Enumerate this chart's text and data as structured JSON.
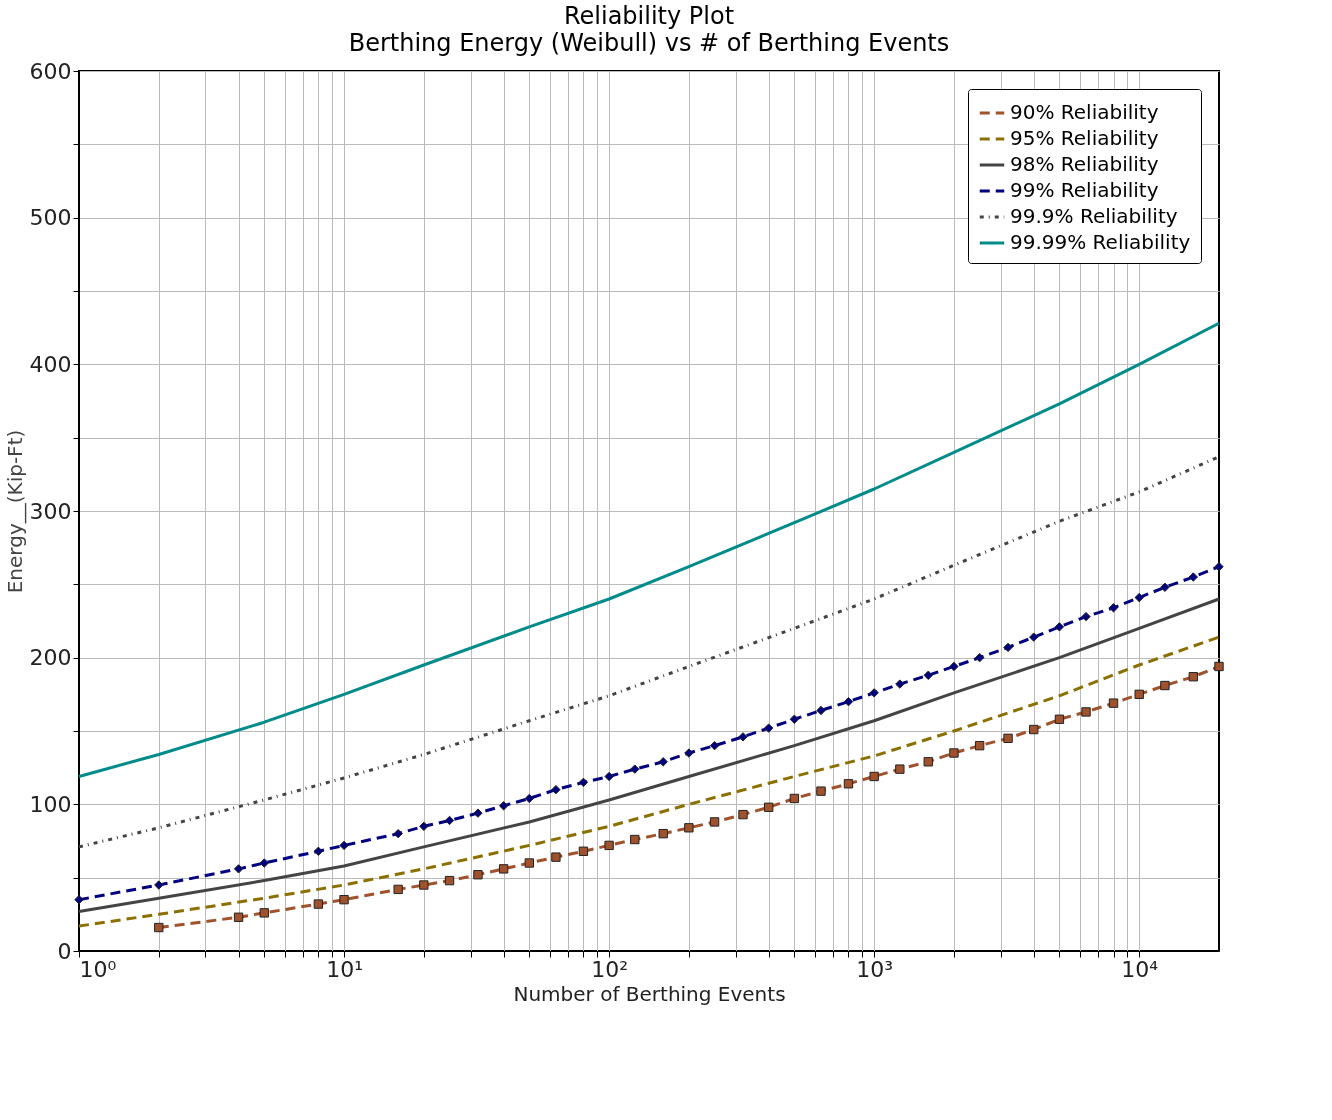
{
  "chart_data": {
    "type": "line",
    "title": "Reliability Plot",
    "subtitle": "Berthing Energy (Weibull) vs # of Berthing Events",
    "xlabel": "Number of Berthing Events",
    "ylabel": "Energy__(Kip-Ft)",
    "log": "x",
    "grid": true,
    "legend": "top right",
    "xlim": [
      1,
      20000
    ],
    "ylim": [
      0,
      600
    ],
    "xticks": [
      {
        "value": 1,
        "label": "10⁰"
      },
      {
        "value": 2,
        "label": null
      },
      {
        "value": 3,
        "label": null
      },
      {
        "value": 4,
        "label": null
      },
      {
        "value": 5,
        "label": null
      },
      {
        "value": 6,
        "label": null
      },
      {
        "value": 7,
        "label": null
      },
      {
        "value": 8,
        "label": null
      },
      {
        "value": 9,
        "label": null
      },
      {
        "value": 10,
        "label": "10¹"
      },
      {
        "value": 20,
        "label": null
      },
      {
        "value": 30,
        "label": null
      },
      {
        "value": 40,
        "label": null
      },
      {
        "value": 50,
        "label": null
      },
      {
        "value": 60,
        "label": null
      },
      {
        "value": 70,
        "label": null
      },
      {
        "value": 80,
        "label": null
      },
      {
        "value": 90,
        "label": null
      },
      {
        "value": 100,
        "label": "10²"
      },
      {
        "value": 200,
        "label": null
      },
      {
        "value": 300,
        "label": null
      },
      {
        "value": 400,
        "label": null
      },
      {
        "value": 500,
        "label": null
      },
      {
        "value": 600,
        "label": null
      },
      {
        "value": 700,
        "label": null
      },
      {
        "value": 800,
        "label": null
      },
      {
        "value": 900,
        "label": null
      },
      {
        "value": 1000,
        "label": "10³"
      },
      {
        "value": 2000,
        "label": null
      },
      {
        "value": 3000,
        "label": null
      },
      {
        "value": 4000,
        "label": null
      },
      {
        "value": 5000,
        "label": null
      },
      {
        "value": 6000,
        "label": null
      },
      {
        "value": 7000,
        "label": null
      },
      {
        "value": 8000,
        "label": null
      },
      {
        "value": 9000,
        "label": null
      },
      {
        "value": 10000,
        "label": "10⁴"
      }
    ],
    "yticks": [
      0,
      {
        "value": 50,
        "label": null
      },
      100,
      {
        "value": 150,
        "label": null
      },
      200,
      {
        "value": 250,
        "label": null
      },
      300,
      {
        "value": 350,
        "label": null
      },
      400,
      {
        "value": 450,
        "label": null
      },
      500,
      {
        "value": 550,
        "label": null
      },
      600
    ],
    "series": [
      {
        "name": "90% Reliability",
        "color": "#a0522d",
        "line_style": "dashed",
        "marker": "square",
        "x": [
          2,
          4,
          5,
          8,
          10,
          16,
          20,
          25,
          32,
          40,
          50,
          63,
          80,
          100,
          125,
          160,
          200,
          250,
          320,
          400,
          500,
          630,
          800,
          1000,
          1250,
          1600,
          2000,
          2500,
          3200,
          4000,
          5000,
          6300,
          8000,
          10000,
          12500,
          16000,
          20000
        ],
        "values": [
          16,
          23,
          26,
          32,
          35,
          42,
          45,
          48,
          52,
          56,
          60,
          64,
          68,
          72,
          76,
          80,
          84,
          88,
          93,
          98,
          104,
          109,
          114,
          119,
          124,
          129,
          135,
          140,
          145,
          151,
          158,
          163,
          169,
          175,
          181,
          187,
          194
        ]
      },
      {
        "name": "95% Reliability",
        "color": "#8b7000",
        "line_style": "dashed",
        "marker": "none",
        "x": [
          1,
          2,
          5,
          10,
          20,
          50,
          100,
          200,
          500,
          1000,
          2000,
          5000,
          10000,
          20000
        ],
        "values": [
          17,
          25,
          36,
          45,
          56,
          72,
          85,
          100,
          119,
          133,
          150,
          174,
          195,
          214
        ]
      },
      {
        "name": "98% Reliability",
        "color": "#444444",
        "line_style": "solid",
        "marker": "none",
        "x": [
          1,
          2,
          5,
          10,
          20,
          50,
          100,
          200,
          500,
          1000,
          2000,
          5000,
          10000,
          20000
        ],
        "values": [
          27,
          36,
          48,
          58,
          71,
          88,
          103,
          119,
          140,
          157,
          176,
          200,
          220,
          240
        ]
      },
      {
        "name": "99% Reliability",
        "color": "#000080",
        "line_style": "dashed",
        "marker": "diamond",
        "x": [
          1,
          2,
          4,
          5,
          8,
          10,
          16,
          20,
          25,
          32,
          40,
          50,
          63,
          80,
          100,
          125,
          160,
          200,
          250,
          320,
          400,
          500,
          630,
          800,
          1000,
          1250,
          1600,
          2000,
          2500,
          3200,
          4000,
          5000,
          6300,
          8000,
          10000,
          12500,
          16000,
          20000
        ],
        "values": [
          35,
          45,
          56,
          60,
          68,
          72,
          80,
          85,
          89,
          94,
          99,
          104,
          110,
          115,
          119,
          124,
          129,
          135,
          140,
          146,
          152,
          158,
          164,
          170,
          176,
          182,
          188,
          194,
          200,
          207,
          214,
          221,
          228,
          234,
          241,
          248,
          255,
          262
        ]
      },
      {
        "name": "99.9% Reliability",
        "color": "#444444",
        "line_style": "dotted",
        "marker": "none",
        "x": [
          1,
          2,
          5,
          10,
          20,
          50,
          100,
          200,
          500,
          1000,
          2000,
          5000,
          10000,
          20000
        ],
        "values": [
          71,
          84,
          103,
          118,
          134,
          157,
          174,
          194,
          220,
          240,
          263,
          293,
          313,
          337
        ]
      },
      {
        "name": "99.99% Reliability",
        "color": "#008b8b",
        "line_style": "solid",
        "marker": "none",
        "x": [
          1,
          2,
          5,
          10,
          20,
          50,
          100,
          200,
          500,
          1000,
          2000,
          5000,
          10000,
          20000
        ],
        "values": [
          119,
          134,
          156,
          175,
          195,
          221,
          240,
          262,
          292,
          315,
          340,
          373,
          400,
          428
        ]
      }
    ]
  }
}
